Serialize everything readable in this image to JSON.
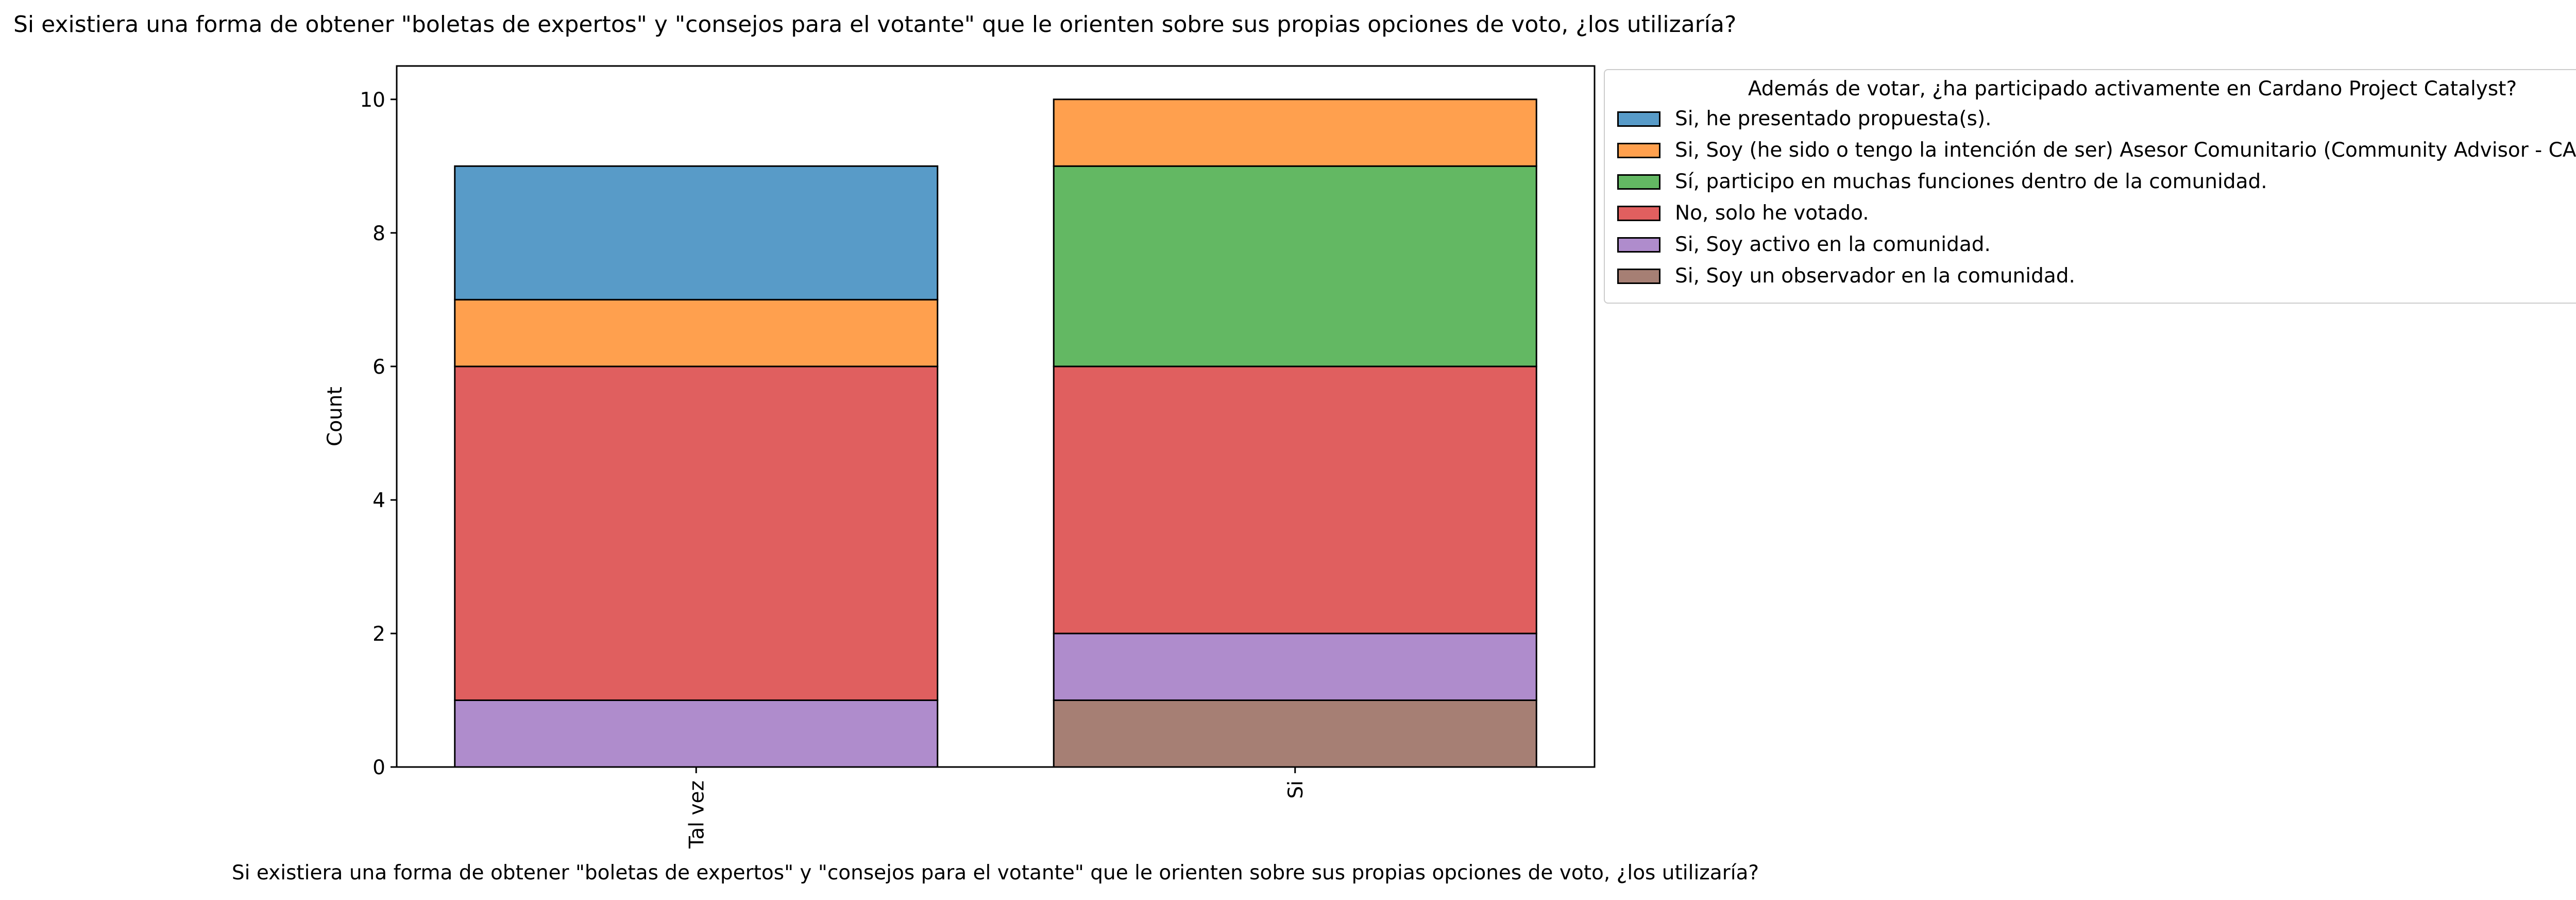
{
  "chart_data": {
    "type": "bar",
    "stacked": true,
    "title": "Si existiera una forma de obtener \"boletas de expertos\" y \"consejos para el votante\" que le orienten sobre sus propias opciones de voto, ¿los utilizaría?",
    "xlabel": "Si existiera una forma de obtener \"boletas de expertos\" y \"consejos para el votante\" que le orienten sobre sus propias opciones de voto, ¿los utilizaría?",
    "ylabel": "Count",
    "categories": [
      "Tal vez",
      "Si"
    ],
    "ylim": [
      0,
      10.5
    ],
    "yticks": [
      0,
      2,
      4,
      6,
      8,
      10
    ],
    "legend_title": "Además de votar, ¿ha participado activamente en Cardano Project Catalyst?",
    "legend_position": "outside-right-top",
    "grid": false,
    "series": [
      {
        "name": "Si, Soy un observador en la comunidad.",
        "color": "#a67f74",
        "values": [
          0,
          1
        ]
      },
      {
        "name": "Si, Soy activo en la comunidad.",
        "color": "#af8ccc",
        "values": [
          1,
          1
        ]
      },
      {
        "name": "No, solo he votado.",
        "color": "#e05f5f",
        "values": [
          5,
          4
        ]
      },
      {
        "name": "Sí, participo en muchas funciones dentro de la comunidad.",
        "color": "#63b863",
        "values": [
          0,
          3
        ]
      },
      {
        "name": "Si, Soy (he sido o tengo la intención de ser) Asesor Comunitario (Community Advisor - CA).",
        "color": "#ffa04e",
        "values": [
          1,
          1
        ]
      },
      {
        "name": "Si, he presentado propuesta(s).",
        "color": "#589bc8",
        "values": [
          2,
          0
        ]
      }
    ],
    "legend_order": [
      "Si, he presentado propuesta(s).",
      "Si, Soy (he sido o tengo la intención de ser) Asesor Comunitario (Community Advisor - CA).",
      "Sí, participo en muchas funciones dentro de la comunidad.",
      "No, solo he votado.",
      "Si, Soy activo en la comunidad.",
      "Si, Soy un observador en la comunidad."
    ]
  }
}
